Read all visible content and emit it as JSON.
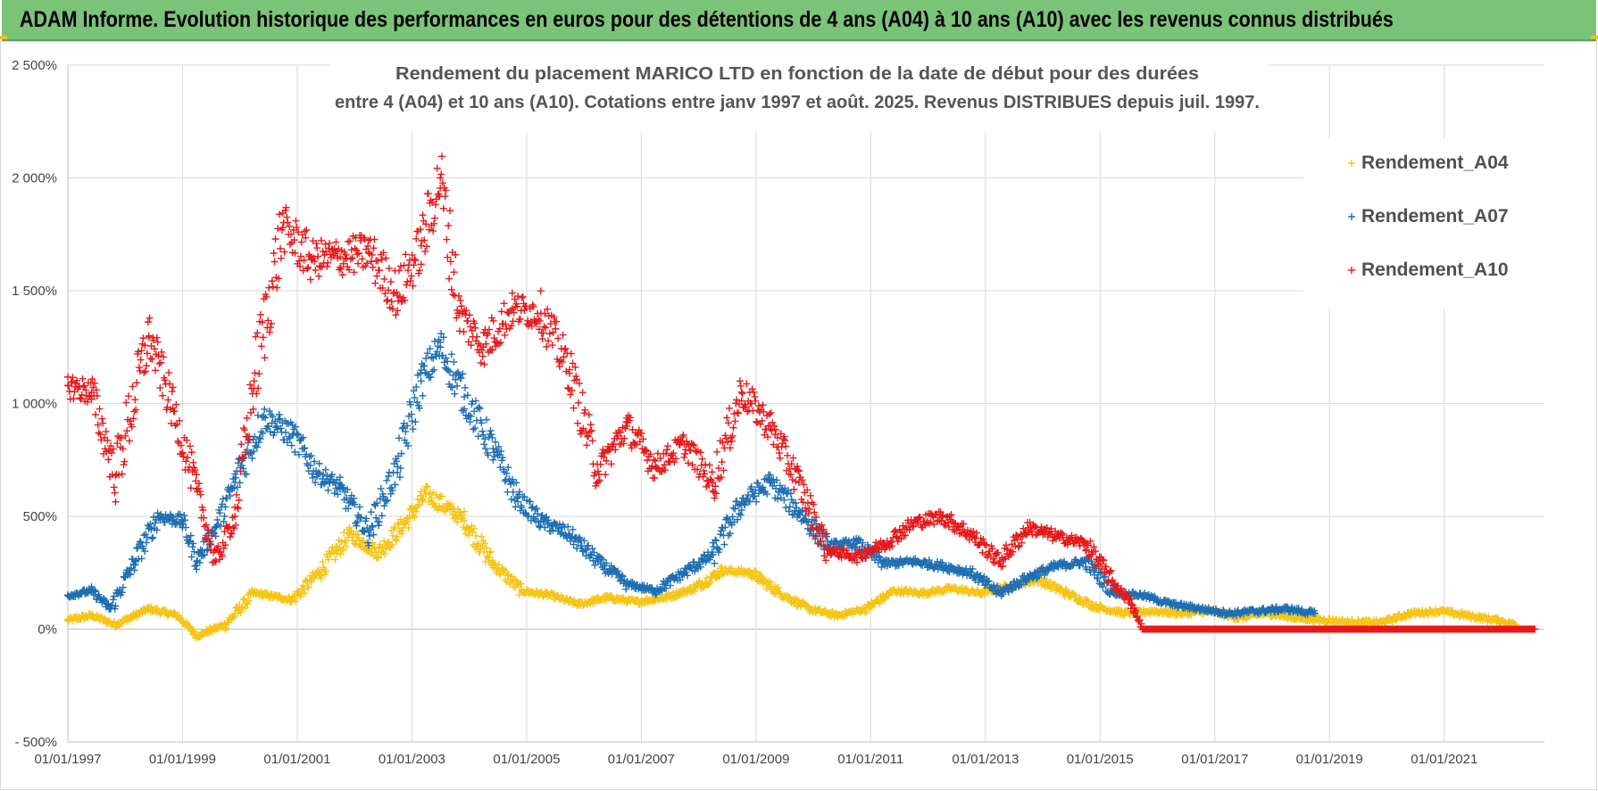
{
  "header": {
    "title": "ADAM Informe. Evolution historique des performances en euros pour des détentions de 4 ans (A04) à 10 ans (A10) avec les revenus connus distribués"
  },
  "chart_data": {
    "type": "scatter",
    "title": "",
    "subtitle_lines": [
      "Rendement du placement MARICO LTD en fonction de la date de début pour des durées",
      "entre 4 (A04) et 10 ans (A10).  Cotations entre janv 1997 et août. 2025. Revenus DISTRIBUES depuis juil. 1997."
    ],
    "xlabel": "",
    "ylabel": "",
    "x_ticks": [
      "01/01/1997",
      "01/01/1999",
      "01/01/2001",
      "01/01/2003",
      "01/01/2005",
      "01/01/2007",
      "01/01/2009",
      "01/01/2011",
      "01/01/2013",
      "01/01/2015",
      "01/01/2017",
      "01/01/2019",
      "01/01/2021"
    ],
    "y_ticks": [
      "2 500%",
      "2 000%",
      "1 500%",
      "1 000%",
      "500%",
      "0%",
      "- 500%"
    ],
    "xlim": [
      "01/01/1997",
      "01/10/2022"
    ],
    "ylim": [
      -500,
      2500
    ],
    "grid": true,
    "legend_position": "top-right",
    "marker": "+",
    "series": [
      {
        "name": "Rendement_A04",
        "color": "#f5c518",
        "points": [
          [
            "01/01/1997",
            40
          ],
          [
            "01/06/1997",
            60
          ],
          [
            "01/11/1997",
            20
          ],
          [
            "01/06/1998",
            90
          ],
          [
            "01/12/1998",
            60
          ],
          [
            "01/04/1999",
            -30
          ],
          [
            "01/10/1999",
            20
          ],
          [
            "01/04/2000",
            160
          ],
          [
            "01/12/2000",
            130
          ],
          [
            "01/06/2001",
            260
          ],
          [
            "01/12/2001",
            420
          ],
          [
            "01/06/2002",
            340
          ],
          [
            "01/12/2002",
            480
          ],
          [
            "01/04/2003",
            600
          ],
          [
            "01/09/2003",
            530
          ],
          [
            "01/12/2003",
            480
          ],
          [
            "01/06/2004",
            290
          ],
          [
            "01/12/2004",
            170
          ],
          [
            "01/06/2005",
            150
          ],
          [
            "01/12/2005",
            110
          ],
          [
            "01/06/2006",
            140
          ],
          [
            "01/12/2006",
            120
          ],
          [
            "01/06/2007",
            140
          ],
          [
            "01/12/2007",
            180
          ],
          [
            "01/06/2008",
            260
          ],
          [
            "01/12/2008",
            250
          ],
          [
            "01/06/2009",
            160
          ],
          [
            "01/12/2009",
            90
          ],
          [
            "01/06/2010",
            60
          ],
          [
            "01/12/2010",
            90
          ],
          [
            "01/06/2011",
            170
          ],
          [
            "01/12/2011",
            160
          ],
          [
            "01/06/2012",
            180
          ],
          [
            "01/12/2012",
            160
          ],
          [
            "01/06/2013",
            190
          ],
          [
            "01/12/2013",
            220
          ],
          [
            "01/06/2014",
            160
          ],
          [
            "01/12/2014",
            100
          ],
          [
            "01/06/2015",
            70
          ],
          [
            "01/12/2015",
            80
          ],
          [
            "01/06/2016",
            70
          ],
          [
            "01/12/2016",
            80
          ],
          [
            "01/06/2017",
            50
          ],
          [
            "01/12/2017",
            70
          ],
          [
            "01/06/2018",
            50
          ],
          [
            "01/12/2018",
            40
          ],
          [
            "01/06/2019",
            30
          ],
          [
            "01/12/2019",
            30
          ],
          [
            "01/06/2020",
            70
          ],
          [
            "01/12/2020",
            80
          ],
          [
            "01/06/2021",
            60
          ],
          [
            "01/12/2021",
            40
          ],
          [
            "01/04/2022",
            20
          ]
        ]
      },
      {
        "name": "Rendement_A07",
        "color": "#1f6fb4",
        "points": [
          [
            "01/01/1997",
            150
          ],
          [
            "01/06/1997",
            170
          ],
          [
            "01/10/1997",
            90
          ],
          [
            "01/03/1998",
            300
          ],
          [
            "01/08/1998",
            500
          ],
          [
            "01/01/1999",
            480
          ],
          [
            "01/04/1999",
            300
          ],
          [
            "01/08/1999",
            450
          ],
          [
            "01/12/1999",
            650
          ],
          [
            "01/06/2000",
            940
          ],
          [
            "01/12/2000",
            860
          ],
          [
            "01/05/2001",
            700
          ],
          [
            "01/10/2001",
            620
          ],
          [
            "01/04/2002",
            430
          ],
          [
            "01/10/2002",
            720
          ],
          [
            "01/03/2003",
            1100
          ],
          [
            "01/07/2003",
            1250
          ],
          [
            "01/12/2003",
            1030
          ],
          [
            "01/06/2004",
            800
          ],
          [
            "01/11/2004",
            580
          ],
          [
            "01/04/2005",
            480
          ],
          [
            "01/10/2005",
            420
          ],
          [
            "01/04/2006",
            300
          ],
          [
            "01/10/2006",
            200
          ],
          [
            "01/04/2007",
            170
          ],
          [
            "01/10/2007",
            250
          ],
          [
            "01/04/2008",
            330
          ],
          [
            "01/10/2008",
            560
          ],
          [
            "01/04/2009",
            650
          ],
          [
            "01/10/2009",
            520
          ],
          [
            "01/04/2010",
            370
          ],
          [
            "01/10/2010",
            380
          ],
          [
            "01/04/2011",
            290
          ],
          [
            "01/10/2011",
            300
          ],
          [
            "01/04/2012",
            280
          ],
          [
            "01/10/2012",
            250
          ],
          [
            "01/04/2013",
            160
          ],
          [
            "01/10/2013",
            230
          ],
          [
            "01/04/2014",
            280
          ],
          [
            "01/10/2014",
            300
          ],
          [
            "01/04/2015",
            160
          ],
          [
            "01/10/2015",
            150
          ],
          [
            "01/04/2016",
            110
          ],
          [
            "01/10/2016",
            90
          ],
          [
            "01/04/2017",
            70
          ],
          [
            "01/10/2017",
            80
          ],
          [
            "01/04/2018",
            90
          ],
          [
            "01/10/2018",
            70
          ]
        ]
      },
      {
        "name": "Rendement_A10",
        "color": "#e8191b",
        "points": [
          [
            "01/01/1997",
            1080
          ],
          [
            "01/06/1997",
            1050
          ],
          [
            "01/11/1997",
            680
          ],
          [
            "01/06/1998",
            1300
          ],
          [
            "01/11/1998",
            980
          ],
          [
            "01/04/1999",
            620
          ],
          [
            "01/08/1999",
            300
          ],
          [
            "01/12/1999",
            500
          ],
          [
            "01/04/2000",
            1100
          ],
          [
            "01/10/2000",
            1780
          ],
          [
            "01/04/2001",
            1640
          ],
          [
            "01/10/2001",
            1650
          ],
          [
            "01/04/2002",
            1670
          ],
          [
            "01/10/2002",
            1480
          ],
          [
            "01/03/2003",
            1700
          ],
          [
            "01/07/2003",
            2000
          ],
          [
            "01/11/2003",
            1400
          ],
          [
            "01/04/2004",
            1250
          ],
          [
            "01/10/2004",
            1420
          ],
          [
            "01/04/2005",
            1400
          ],
          [
            "01/10/2005",
            1150
          ],
          [
            "01/04/2006",
            700
          ],
          [
            "01/10/2006",
            900
          ],
          [
            "01/04/2007",
            720
          ],
          [
            "01/10/2007",
            820
          ],
          [
            "01/04/2008",
            650
          ],
          [
            "01/10/2008",
            1050
          ],
          [
            "01/04/2009",
            900
          ],
          [
            "01/10/2009",
            650
          ],
          [
            "01/04/2010",
            350
          ],
          [
            "01/10/2010",
            320
          ],
          [
            "01/04/2011",
            380
          ],
          [
            "01/10/2011",
            470
          ],
          [
            "01/04/2012",
            500
          ],
          [
            "01/10/2012",
            420
          ],
          [
            "01/04/2013",
            300
          ],
          [
            "01/10/2013",
            450
          ],
          [
            "01/04/2014",
            410
          ],
          [
            "01/10/2014",
            380
          ],
          [
            "01/04/2015",
            200
          ],
          [
            "01/07/2015",
            130
          ],
          [
            "01/10/2015",
            0
          ],
          [
            "01/06/2016",
            0
          ],
          [
            "01/06/2017",
            0
          ],
          [
            "01/06/2018",
            0
          ],
          [
            "01/06/2019",
            0
          ],
          [
            "01/06/2020",
            0
          ],
          [
            "01/06/2021",
            0
          ],
          [
            "01/08/2022",
            0
          ]
        ]
      }
    ]
  }
}
